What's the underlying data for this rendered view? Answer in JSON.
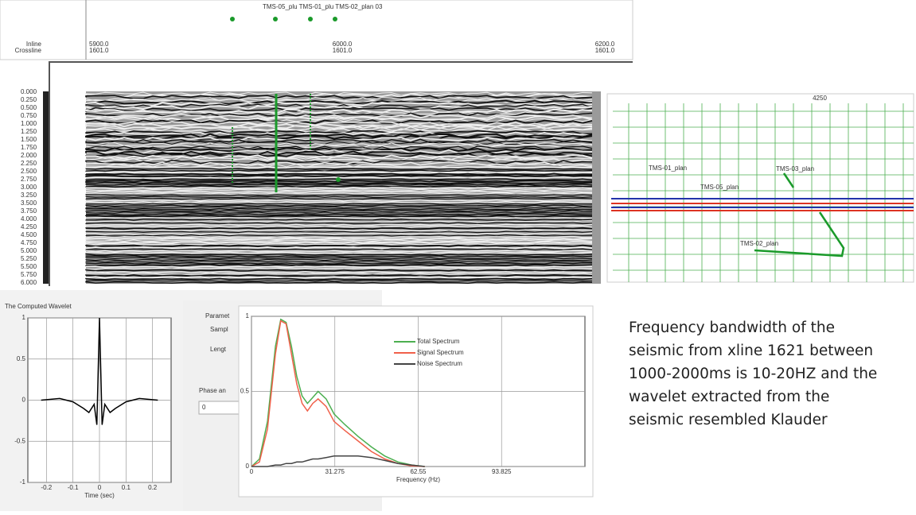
{
  "seismic_view": {
    "well_label": "TMS-05_plu TMS-01_plu TMS-02_plan 03",
    "inline_label": "Inline",
    "crossline_label": "Crossline",
    "top_ticks": [
      {
        "inline": "5900.0",
        "crossline": "1601.0"
      },
      {
        "inline": "6000.0",
        "crossline": "1601.0"
      },
      {
        "inline": "6200.0",
        "crossline": "1601.0"
      }
    ],
    "time_ticks": [
      "0.000",
      "0.250",
      "0.500",
      "0.750",
      "1.000",
      "1.250",
      "1.500",
      "1.750",
      "2.000",
      "2.250",
      "2.500",
      "2.750",
      "3.000",
      "3.250",
      "3.500",
      "3.750",
      "4.000",
      "4.250",
      "4.500",
      "4.750",
      "5.000",
      "5.250",
      "5.500",
      "5.750",
      "6.000"
    ]
  },
  "map_view": {
    "top_label": "4250",
    "well_labels": [
      "TMS-01_plan",
      "TMS-05_plan",
      "TMS-03_plan",
      "TMS-02_plan"
    ]
  },
  "wavelet_chart": {
    "type": "line",
    "title": "The Computed Wavelet",
    "x_label": "Time (sec)",
    "xlim": [
      -0.27,
      0.27
    ],
    "xticks": [
      -0.2,
      -0.1,
      0,
      0.1,
      0.2
    ],
    "ylim": [
      -1,
      1
    ],
    "yticks": [
      -1,
      -0.5,
      0,
      0.5,
      1
    ],
    "grid": true,
    "x": [
      -0.22,
      -0.15,
      -0.1,
      -0.06,
      -0.04,
      -0.02,
      -0.01,
      0,
      0.01,
      0.02,
      0.04,
      0.06,
      0.1,
      0.15,
      0.22
    ],
    "values": [
      0,
      0.02,
      -0.02,
      -0.1,
      -0.15,
      -0.05,
      -0.3,
      1,
      -0.3,
      -0.05,
      -0.15,
      -0.1,
      -0.02,
      0.02,
      0
    ],
    "color": "#000000"
  },
  "parameters_panel": {
    "title": "Paramet",
    "sample": "Sampl",
    "length": "Lengt",
    "phase": "Phase an",
    "phase_value": "0"
  },
  "spectrum_chart": {
    "type": "line",
    "x_label": "Frequency (Hz)",
    "xlim": [
      0,
      125.1
    ],
    "xticks": [
      0,
      31.275,
      62.55,
      93.825
    ],
    "ylim": [
      0,
      1
    ],
    "yticks": [
      0,
      0.5,
      1
    ],
    "grid": true,
    "x": [
      0,
      3,
      6,
      9,
      11,
      13,
      15,
      17,
      19,
      21,
      23,
      25,
      28,
      31,
      35,
      40,
      45,
      50,
      55,
      60,
      65
    ],
    "series": [
      {
        "name": "Total Spectrum",
        "color": "#4caf50",
        "values": [
          0,
          0.05,
          0.3,
          0.8,
          0.98,
          0.96,
          0.8,
          0.6,
          0.47,
          0.42,
          0.46,
          0.5,
          0.45,
          0.35,
          0.28,
          0.2,
          0.13,
          0.07,
          0.03,
          0.01,
          0
        ]
      },
      {
        "name": "Signal Spectrum",
        "color": "#f0604a",
        "values": [
          0,
          0.03,
          0.25,
          0.75,
          0.97,
          0.95,
          0.75,
          0.55,
          0.42,
          0.37,
          0.42,
          0.45,
          0.4,
          0.3,
          0.24,
          0.17,
          0.1,
          0.05,
          0.02,
          0.005,
          0
        ]
      },
      {
        "name": "Noise Spectrum",
        "color": "#444444",
        "values": [
          0,
          0,
          0,
          0.01,
          0.01,
          0.02,
          0.02,
          0.03,
          0.03,
          0.04,
          0.05,
          0.05,
          0.06,
          0.07,
          0.07,
          0.07,
          0.06,
          0.04,
          0.02,
          0.01,
          0
        ]
      }
    ]
  },
  "note": "Frequency bandwidth of the seismic from xline 1621 between 1000-2000ms is 10-20HZ and the wavelet extracted from the seismic resembled Klauder"
}
